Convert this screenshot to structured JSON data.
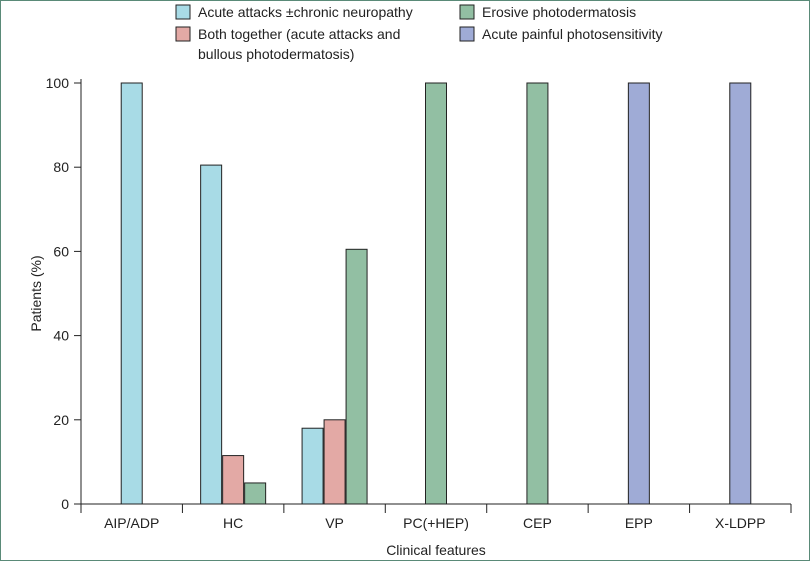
{
  "chart_data": {
    "type": "bar",
    "xlabel": "Clinical features",
    "ylabel": "Patients (%)",
    "ylim": [
      0,
      100
    ],
    "yticks": [
      0,
      20,
      40,
      60,
      80,
      100
    ],
    "grid": false,
    "legend_position": "top",
    "categories": [
      "AIP/ADP",
      "HC",
      "VP",
      "PC(+HEP)",
      "CEP",
      "EPP",
      "X-LDPP"
    ],
    "series": [
      {
        "name": "Acute attacks ±chronic neuropathy",
        "color": "#a8dbe6",
        "values": [
          100,
          80.5,
          18,
          null,
          null,
          null,
          null
        ]
      },
      {
        "name": "Both together (acute attacks and bullous photodermatosis)",
        "legend_lines": [
          "Both together (acute attacks and",
          "bullous photodermatosis)"
        ],
        "color": "#e3a9a5",
        "values": [
          null,
          11.5,
          20,
          null,
          null,
          null,
          null
        ]
      },
      {
        "name": "Erosive photodermatosis",
        "color": "#92bfa3",
        "values": [
          null,
          5,
          60.5,
          100,
          100,
          null,
          null
        ]
      },
      {
        "name": "Acute painful photosensitivity",
        "color": "#9fabd6",
        "values": [
          null,
          null,
          null,
          null,
          null,
          100,
          100
        ]
      }
    ]
  }
}
